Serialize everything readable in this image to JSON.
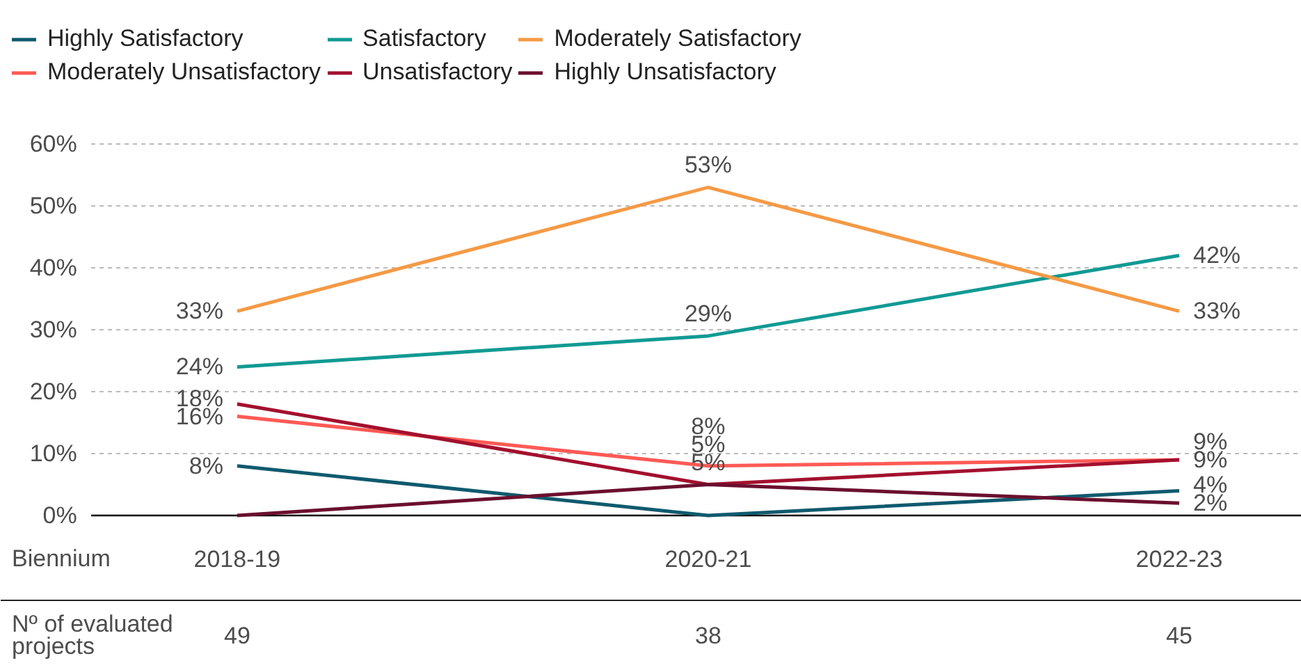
{
  "chart_data": {
    "type": "line",
    "xlabel": "Biennium",
    "categories": [
      "2018-19",
      "2020-21",
      "2022-23"
    ],
    "series": [
      {
        "name": "Highly Satisfactory",
        "color": "#0f5a6e",
        "values": [
          8,
          0,
          4
        ],
        "value_labels": [
          "8%",
          null,
          "4%"
        ]
      },
      {
        "name": "Satisfactory",
        "color": "#119a93",
        "values": [
          24,
          29,
          42
        ],
        "value_labels": [
          "24%",
          "29%",
          "42%"
        ]
      },
      {
        "name": "Moderately Satisfactory",
        "color": "#f59a45",
        "values": [
          33,
          53,
          33
        ],
        "value_labels": [
          "33%",
          "53%",
          "33%"
        ]
      },
      {
        "name": "Moderately Unsatisfactory",
        "color": "#ff5a55",
        "values": [
          16,
          8,
          9
        ],
        "value_labels": [
          "16%",
          "8%",
          "9%"
        ]
      },
      {
        "name": "Unsatisfactory",
        "color": "#a3102e",
        "values": [
          18,
          5,
          9
        ],
        "value_labels": [
          "18%",
          "5%",
          "9%"
        ]
      },
      {
        "name": "Highly Unsatisfactory",
        "color": "#6b0f2e",
        "values": [
          0,
          5,
          2
        ],
        "value_labels": [
          null,
          "5%",
          "2%"
        ]
      }
    ],
    "ylim": [
      0,
      60
    ],
    "yticks": [
      {
        "value": 0,
        "label": "0%"
      },
      {
        "value": 10,
        "label": "10%"
      },
      {
        "value": 20,
        "label": "20%"
      },
      {
        "value": 30,
        "label": "30%"
      },
      {
        "value": 40,
        "label": "40%"
      },
      {
        "value": 50,
        "label": "50%"
      },
      {
        "value": 60,
        "label": "60%"
      }
    ],
    "grid": "y",
    "legend": "top",
    "marker": "none",
    "line_style": "solid",
    "annotations": [
      "Nº of evaluated projects",
      "49",
      "38",
      "45"
    ]
  }
}
